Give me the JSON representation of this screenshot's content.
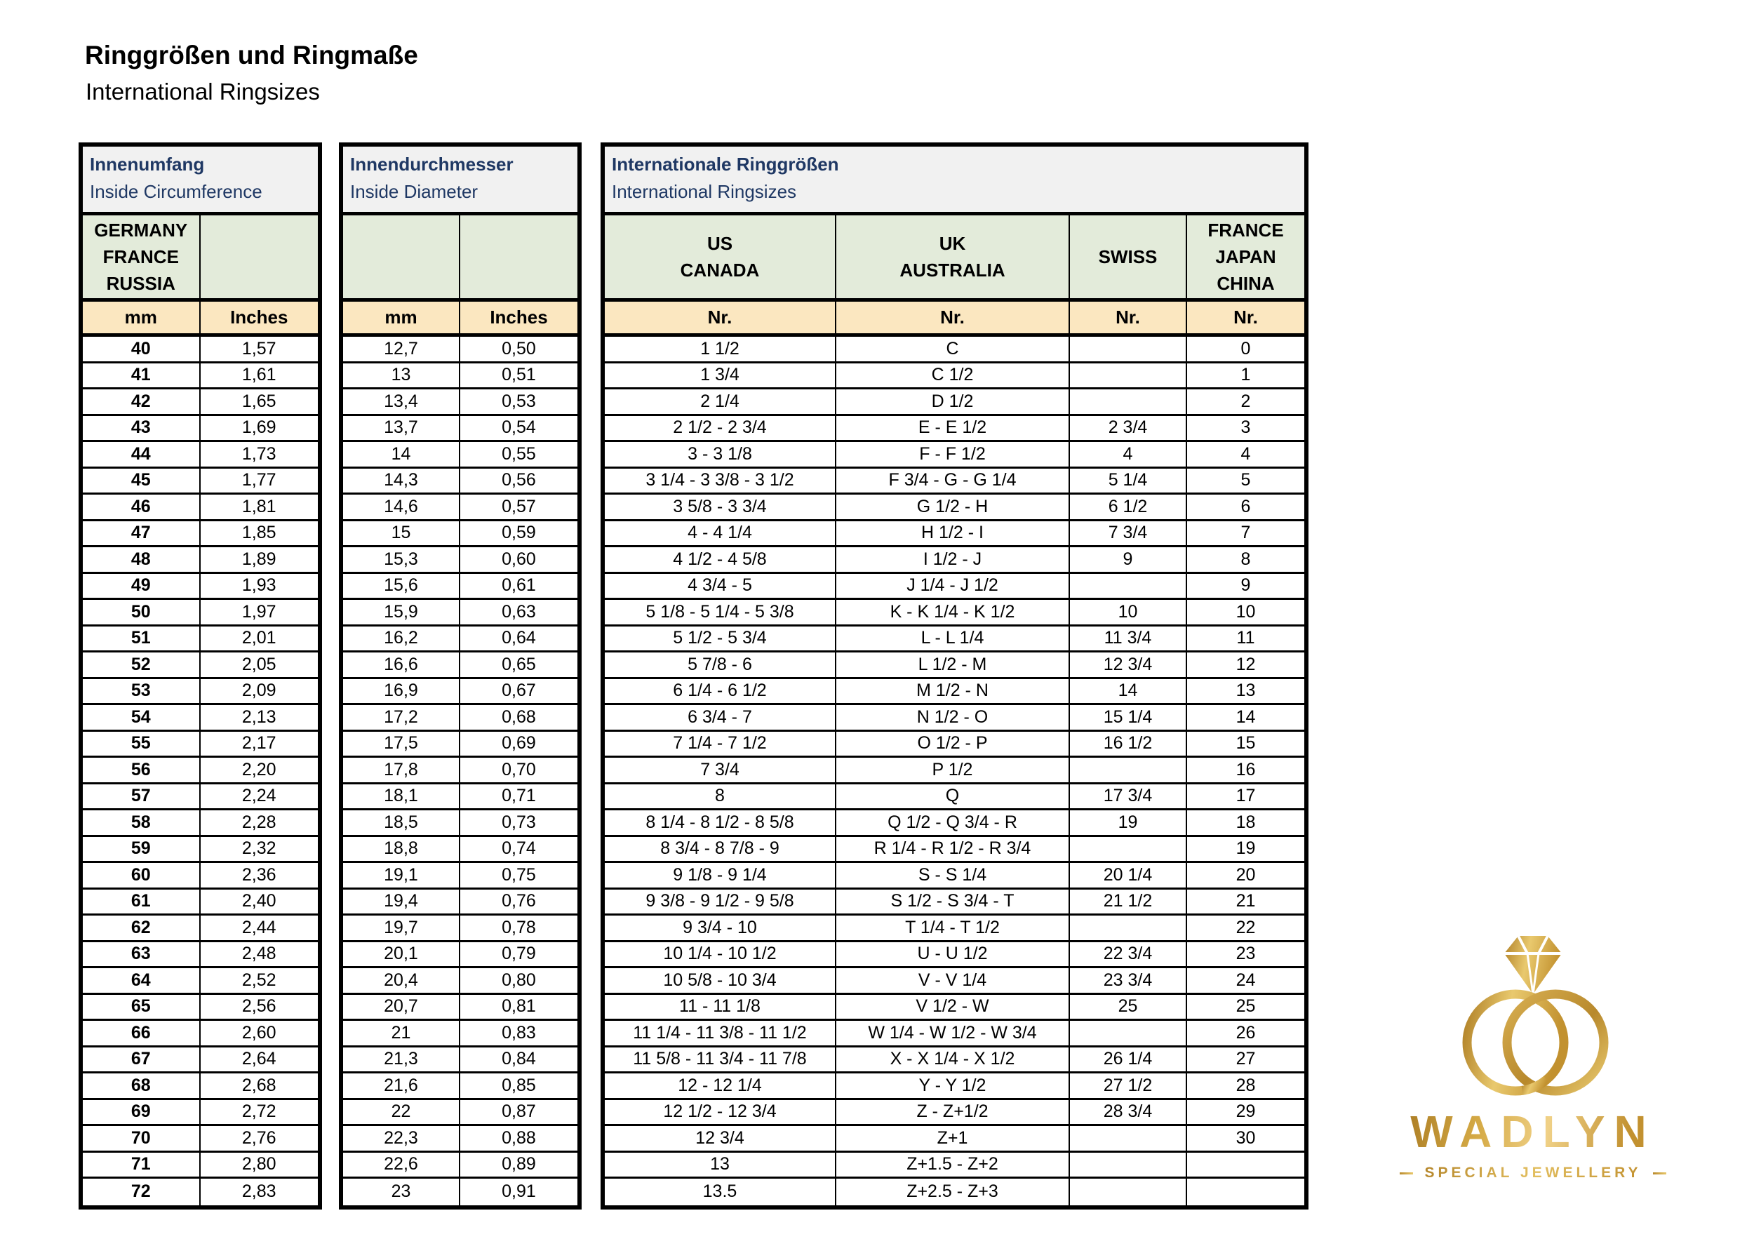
{
  "page": {
    "title": "Ringgrößen und Ringmaße",
    "subtitle": "International Ringsizes"
  },
  "colors": {
    "header_text_navy": "#1F3864",
    "band_gray": "#F1F1F1",
    "band_green": "#E3EBDA",
    "band_cream": "#FBE7C0",
    "border_black": "#000000",
    "gold_dark": "#A87922",
    "gold_mid": "#D5AA46",
    "gold_light": "#F0D187"
  },
  "tables": {
    "circumference": {
      "title_de": "Innenumfang",
      "title_en": "Inside Circumference",
      "region_lines": [
        "GERMANY",
        "FRANCE",
        "RUSSIA"
      ],
      "col_headers": [
        "mm",
        "Inches"
      ],
      "rows": [
        [
          "40",
          "1,57"
        ],
        [
          "41",
          "1,61"
        ],
        [
          "42",
          "1,65"
        ],
        [
          "43",
          "1,69"
        ],
        [
          "44",
          "1,73"
        ],
        [
          "45",
          "1,77"
        ],
        [
          "46",
          "1,81"
        ],
        [
          "47",
          "1,85"
        ],
        [
          "48",
          "1,89"
        ],
        [
          "49",
          "1,93"
        ],
        [
          "50",
          "1,97"
        ],
        [
          "51",
          "2,01"
        ],
        [
          "52",
          "2,05"
        ],
        [
          "53",
          "2,09"
        ],
        [
          "54",
          "2,13"
        ],
        [
          "55",
          "2,17"
        ],
        [
          "56",
          "2,20"
        ],
        [
          "57",
          "2,24"
        ],
        [
          "58",
          "2,28"
        ],
        [
          "59",
          "2,32"
        ],
        [
          "60",
          "2,36"
        ],
        [
          "61",
          "2,40"
        ],
        [
          "62",
          "2,44"
        ],
        [
          "63",
          "2,48"
        ],
        [
          "64",
          "2,52"
        ],
        [
          "65",
          "2,56"
        ],
        [
          "66",
          "2,60"
        ],
        [
          "67",
          "2,64"
        ],
        [
          "68",
          "2,68"
        ],
        [
          "69",
          "2,72"
        ],
        [
          "70",
          "2,76"
        ],
        [
          "71",
          "2,80"
        ],
        [
          "72",
          "2,83"
        ]
      ]
    },
    "diameter": {
      "title_de": "Innendurchmesser",
      "title_en": "Inside Diameter",
      "col_headers": [
        "mm",
        "Inches"
      ],
      "rows": [
        [
          "12,7",
          "0,50"
        ],
        [
          "13",
          "0,51"
        ],
        [
          "13,4",
          "0,53"
        ],
        [
          "13,7",
          "0,54"
        ],
        [
          "14",
          "0,55"
        ],
        [
          "14,3",
          "0,56"
        ],
        [
          "14,6",
          "0,57"
        ],
        [
          "15",
          "0,59"
        ],
        [
          "15,3",
          "0,60"
        ],
        [
          "15,6",
          "0,61"
        ],
        [
          "15,9",
          "0,63"
        ],
        [
          "16,2",
          "0,64"
        ],
        [
          "16,6",
          "0,65"
        ],
        [
          "16,9",
          "0,67"
        ],
        [
          "17,2",
          "0,68"
        ],
        [
          "17,5",
          "0,69"
        ],
        [
          "17,8",
          "0,70"
        ],
        [
          "18,1",
          "0,71"
        ],
        [
          "18,5",
          "0,73"
        ],
        [
          "18,8",
          "0,74"
        ],
        [
          "19,1",
          "0,75"
        ],
        [
          "19,4",
          "0,76"
        ],
        [
          "19,7",
          "0,78"
        ],
        [
          "20,1",
          "0,79"
        ],
        [
          "20,4",
          "0,80"
        ],
        [
          "20,7",
          "0,81"
        ],
        [
          "21",
          "0,83"
        ],
        [
          "21,3",
          "0,84"
        ],
        [
          "21,6",
          "0,85"
        ],
        [
          "22",
          "0,87"
        ],
        [
          "22,3",
          "0,88"
        ],
        [
          "22,6",
          "0,89"
        ],
        [
          "23",
          "0,91"
        ]
      ]
    },
    "international": {
      "title_de": "Internationale Ringgrößen",
      "title_en": "International Ringsizes",
      "column_groups": [
        {
          "lines": [
            "US",
            "CANADA"
          ]
        },
        {
          "lines": [
            "UK",
            "AUSTRALIA"
          ]
        },
        {
          "lines": [
            "SWISS"
          ]
        },
        {
          "lines": [
            "FRANCE",
            "JAPAN",
            "CHINA"
          ]
        }
      ],
      "col_headers": [
        "Nr.",
        "Nr.",
        "Nr.",
        "Nr."
      ],
      "rows": [
        [
          "1 1/2",
          "C",
          "",
          "0"
        ],
        [
          "1 3/4",
          "C 1/2",
          "",
          "1"
        ],
        [
          "2 1/4",
          "D 1/2",
          "",
          "2"
        ],
        [
          "2 1/2 - 2 3/4",
          "E - E 1/2",
          "2 3/4",
          "3"
        ],
        [
          "3 - 3 1/8",
          "F - F 1/2",
          "4",
          "4"
        ],
        [
          "3 1/4 - 3 3/8 - 3 1/2",
          "F 3/4 - G - G 1/4",
          "5 1/4",
          "5"
        ],
        [
          "3 5/8 - 3 3/4",
          "G 1/2 - H",
          "6 1/2",
          "6"
        ],
        [
          "4 - 4 1/4",
          "H 1/2 - I",
          "7 3/4",
          "7"
        ],
        [
          "4 1/2 - 4 5/8",
          "I 1/2 - J",
          "9",
          "8"
        ],
        [
          "4 3/4 - 5",
          "J 1/4 - J 1/2",
          "",
          "9"
        ],
        [
          "5 1/8 - 5 1/4 - 5 3/8",
          "K - K 1/4 - K 1/2",
          "10",
          "10"
        ],
        [
          "5 1/2 - 5 3/4",
          "L - L 1/4",
          "11 3/4",
          "11"
        ],
        [
          "5 7/8 - 6",
          "L 1/2 - M",
          "12 3/4",
          "12"
        ],
        [
          "6 1/4 - 6 1/2",
          "M 1/2 - N",
          "14",
          "13"
        ],
        [
          "6 3/4 - 7",
          "N 1/2 - O",
          "15 1/4",
          "14"
        ],
        [
          "7 1/4 - 7 1/2",
          "O 1/2 - P",
          "16 1/2",
          "15"
        ],
        [
          "7 3/4",
          "P 1/2",
          "",
          "16"
        ],
        [
          "8",
          "Q",
          "17 3/4",
          "17"
        ],
        [
          "8 1/4 - 8 1/2 - 8 5/8",
          "Q 1/2 - Q 3/4 - R",
          "19",
          "18"
        ],
        [
          "8 3/4 - 8 7/8 - 9",
          "R 1/4 - R 1/2 - R 3/4",
          "",
          "19"
        ],
        [
          "9 1/8 - 9 1/4",
          "S - S 1/4",
          "20 1/4",
          "20"
        ],
        [
          "9 3/8 - 9 1/2 - 9 5/8",
          "S 1/2 - S 3/4 - T",
          "21 1/2",
          "21"
        ],
        [
          "9 3/4 - 10",
          "T 1/4 - T 1/2",
          "",
          "22"
        ],
        [
          "10 1/4 - 10 1/2",
          "U - U 1/2",
          "22 3/4",
          "23"
        ],
        [
          "10 5/8 - 10 3/4",
          "V - V 1/4",
          "23 3/4",
          "24"
        ],
        [
          "11 - 11 1/8",
          "V 1/2 - W",
          "25",
          "25"
        ],
        [
          "11 1/4 - 11 3/8 - 11 1/2",
          "W 1/4 - W 1/2 - W 3/4",
          "",
          "26"
        ],
        [
          "11 5/8 - 11 3/4 - 11 7/8",
          "X - X 1/4 - X 1/2",
          "26 1/4",
          "27"
        ],
        [
          "12 - 12 1/4",
          "Y - Y 1/2",
          "27 1/2",
          "28"
        ],
        [
          "12 1/2 - 12 3/4",
          "Z - Z+1/2",
          "28 3/4",
          "29"
        ],
        [
          "12 3/4",
          "Z+1",
          "",
          "30"
        ],
        [
          "13",
          "Z+1.5 - Z+2",
          "",
          ""
        ],
        [
          "13.5",
          "Z+2.5 - Z+3",
          "",
          ""
        ]
      ]
    }
  },
  "logo": {
    "brand": "WADLYN",
    "tagline": "SPECIAL JEWELLERY",
    "icon": "two-interlocked-rings-with-diamond"
  }
}
